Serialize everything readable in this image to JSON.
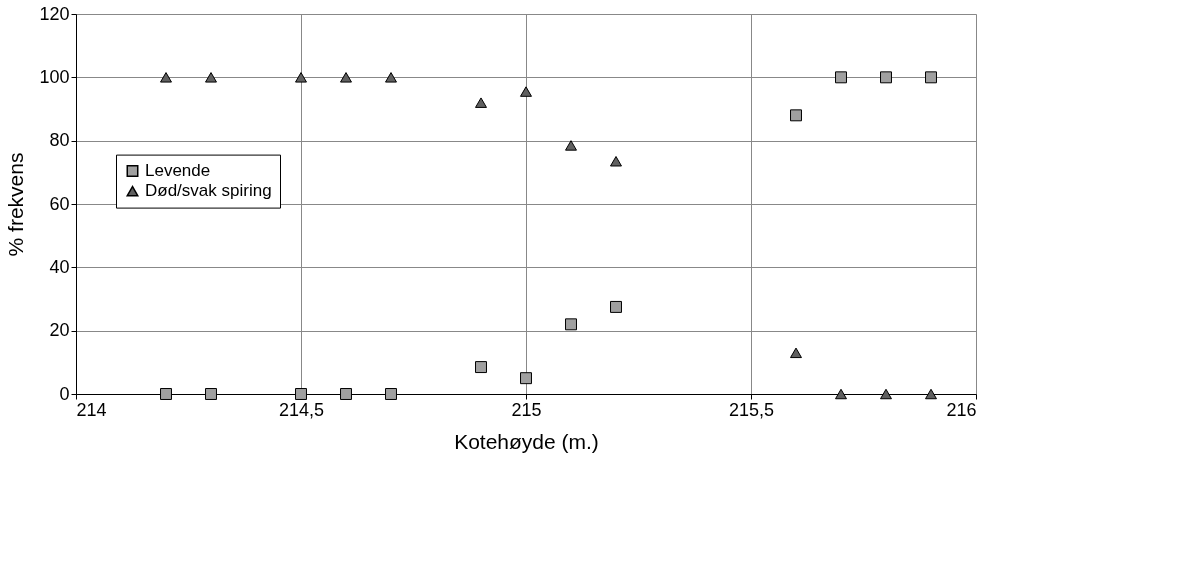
{
  "chart_data": {
    "type": "scatter",
    "xlabel": "Kotehøyde (m.)",
    "ylabel": "% frekvens",
    "xlim": [
      214,
      216
    ],
    "xticks": [
      214,
      {
        "value": 214.5,
        "label": "214,5"
      },
      215,
      {
        "value": 215.5,
        "label": "215,5"
      },
      216
    ],
    "ylim": [
      0,
      120
    ],
    "yticks": [
      0,
      20,
      40,
      60,
      80,
      100,
      120
    ],
    "grid": true,
    "legend": "left",
    "series": [
      {
        "name": "Levende",
        "color": "#a0a0a0",
        "marker": "square",
        "x": [
          214.2,
          214.3,
          214.5,
          214.6,
          214.7,
          214.9,
          215.0,
          215.1,
          215.2,
          215.6,
          215.7,
          215.8,
          215.9
        ],
        "values": [
          0,
          0,
          0,
          0,
          0,
          8.5,
          5,
          22,
          27.5,
          88,
          100,
          100,
          100
        ]
      },
      {
        "name": "Død/svak spiring",
        "color": "#606060",
        "marker": "triangle",
        "x": [
          214.2,
          214.3,
          214.5,
          214.6,
          214.7,
          214.9,
          215.0,
          215.1,
          215.2,
          215.6,
          215.7,
          215.8,
          215.9
        ],
        "values": [
          100,
          100,
          100,
          100,
          100,
          92,
          95.5,
          78.5,
          73.5,
          13,
          0,
          0,
          0
        ]
      }
    ]
  }
}
